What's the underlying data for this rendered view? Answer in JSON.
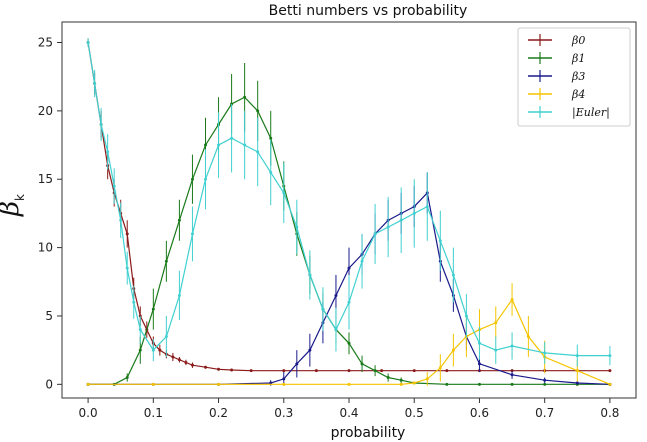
{
  "chart_data": {
    "type": "line",
    "title": "Betti numbers vs probability",
    "xlabel": "probability",
    "ylabel": "β_k",
    "xlim": [
      -0.04,
      0.84
    ],
    "ylim": [
      -1,
      26.5
    ],
    "xticks": [
      "0.0",
      "0.1",
      "0.2",
      "0.3",
      "0.4",
      "0.5",
      "0.6",
      "0.7",
      "0.8"
    ],
    "yticks": [
      "0",
      "5",
      "10",
      "15",
      "20",
      "25"
    ],
    "grid": false,
    "legend_position": "top-right",
    "series": [
      {
        "name": "β0",
        "color": "#8b1a1a",
        "x": [
          0.0,
          0.01,
          0.02,
          0.03,
          0.04,
          0.05,
          0.06,
          0.07,
          0.08,
          0.09,
          0.1,
          0.11,
          0.12,
          0.13,
          0.14,
          0.15,
          0.16,
          0.18,
          0.2,
          0.22,
          0.25,
          0.3,
          0.35,
          0.4,
          0.45,
          0.5,
          0.55,
          0.6,
          0.65,
          0.7,
          0.75,
          0.8
        ],
        "y": [
          25,
          22,
          19,
          16,
          14,
          12.5,
          11,
          7,
          5,
          4,
          3,
          2.5,
          2.2,
          2.0,
          1.8,
          1.6,
          1.4,
          1.25,
          1.1,
          1.05,
          1.0,
          1.0,
          1.0,
          1.0,
          1.0,
          1.0,
          1.0,
          1.0,
          1.0,
          1.0,
          1.0,
          1.0
        ],
        "err": [
          0.3,
          0.8,
          1.0,
          1.0,
          1.0,
          1.0,
          1.0,
          0.8,
          0.7,
          0.6,
          0.5,
          0.4,
          0.3,
          0.3,
          0.2,
          0.2,
          0.2,
          0.1,
          0.1,
          0.1,
          0.05,
          0.05,
          0.05,
          0.05,
          0.05,
          0.05,
          0.05,
          0.05,
          0.05,
          0.05,
          0.05,
          0.05
        ]
      },
      {
        "name": "β1",
        "color": "#1a7a1a",
        "x": [
          0.0,
          0.04,
          0.06,
          0.08,
          0.1,
          0.12,
          0.14,
          0.16,
          0.18,
          0.2,
          0.22,
          0.24,
          0.26,
          0.28,
          0.3,
          0.32,
          0.34,
          0.36,
          0.38,
          0.4,
          0.42,
          0.44,
          0.46,
          0.48,
          0.5,
          0.55,
          0.6,
          0.65,
          0.7,
          0.75,
          0.8
        ],
        "y": [
          0,
          0,
          0.5,
          2.5,
          5.5,
          9,
          12,
          15,
          17.5,
          19,
          20.5,
          21,
          20,
          18,
          14.5,
          11,
          8,
          5.5,
          4,
          3,
          1.5,
          1.0,
          0.5,
          0.3,
          0.1,
          0,
          0,
          0,
          0,
          0,
          0
        ],
        "err": [
          0,
          0,
          0.3,
          1.0,
          1.5,
          1.5,
          1.5,
          1.8,
          2.0,
          2.0,
          2.2,
          2.5,
          2.2,
          2.0,
          1.8,
          1.6,
          1.4,
          1.2,
          1.0,
          0.8,
          0.6,
          0.4,
          0.3,
          0.2,
          0.1,
          0,
          0,
          0,
          0,
          0,
          0
        ]
      },
      {
        "name": "β3",
        "color": "#1a1a8b",
        "x": [
          0.0,
          0.1,
          0.2,
          0.28,
          0.3,
          0.32,
          0.34,
          0.36,
          0.38,
          0.4,
          0.42,
          0.44,
          0.46,
          0.48,
          0.5,
          0.52,
          0.54,
          0.56,
          0.58,
          0.6,
          0.65,
          0.7,
          0.75,
          0.8
        ],
        "y": [
          0,
          0,
          0,
          0.1,
          0.4,
          1.5,
          2.5,
          4.5,
          6.5,
          8.5,
          9.5,
          11,
          12,
          12.5,
          13,
          14,
          9,
          6.5,
          3.5,
          1.5,
          0.7,
          0.3,
          0.1,
          0
        ],
        "err": [
          0,
          0,
          0,
          0.2,
          0.5,
          1.0,
          1.2,
          1.5,
          1.5,
          1.5,
          1.5,
          1.5,
          1.5,
          1.5,
          1.5,
          1.5,
          1.5,
          1.2,
          1.0,
          0.6,
          0.3,
          0.2,
          0.1,
          0
        ]
      },
      {
        "name": "β4",
        "color": "#f5c400",
        "x": [
          0.0,
          0.1,
          0.2,
          0.3,
          0.4,
          0.48,
          0.5,
          0.52,
          0.54,
          0.56,
          0.58,
          0.6,
          0.625,
          0.65,
          0.675,
          0.7,
          0.75,
          0.8
        ],
        "y": [
          0,
          0,
          0,
          0,
          0,
          0,
          0.1,
          0.4,
          1.2,
          2.5,
          3.5,
          4,
          4.5,
          6.2,
          3.5,
          2.0,
          1.0,
          0
        ],
        "err": [
          0,
          0,
          0,
          0,
          0,
          0,
          0.1,
          0.5,
          1.0,
          1.2,
          1.5,
          1.5,
          1.2,
          1.2,
          1.5,
          1.2,
          0.8,
          0
        ]
      },
      {
        "name": "|Euler|",
        "color": "#40d0d0",
        "x": [
          0.0,
          0.01,
          0.02,
          0.03,
          0.04,
          0.05,
          0.06,
          0.07,
          0.08,
          0.1,
          0.12,
          0.14,
          0.16,
          0.18,
          0.2,
          0.22,
          0.24,
          0.26,
          0.28,
          0.3,
          0.32,
          0.34,
          0.36,
          0.38,
          0.4,
          0.42,
          0.44,
          0.46,
          0.48,
          0.5,
          0.52,
          0.54,
          0.56,
          0.58,
          0.6,
          0.625,
          0.65,
          0.7,
          0.75,
          0.8
        ],
        "y": [
          25,
          22,
          19,
          17,
          14.5,
          12,
          8.5,
          6,
          4,
          2.5,
          3.5,
          6.5,
          11,
          15,
          17.5,
          18,
          17.5,
          17,
          15.5,
          14,
          11.5,
          8,
          5.5,
          4,
          6,
          9,
          11,
          11.5,
          12,
          12.5,
          13,
          10.5,
          8,
          5,
          3,
          2.5,
          2.8,
          2.3,
          2.1,
          2.1
        ],
        "err": [
          0.3,
          1.0,
          1.2,
          1.3,
          1.3,
          1.3,
          1.2,
          1.2,
          1.0,
          0.8,
          1.5,
          1.8,
          2.0,
          2.2,
          2.4,
          2.5,
          2.5,
          2.5,
          2.4,
          2.2,
          2.0,
          1.8,
          1.6,
          1.6,
          2.0,
          2.0,
          2.2,
          2.2,
          2.4,
          2.5,
          2.5,
          2.2,
          2.0,
          1.6,
          1.2,
          1.0,
          1.0,
          0.8,
          0.8,
          0.7
        ]
      }
    ]
  }
}
